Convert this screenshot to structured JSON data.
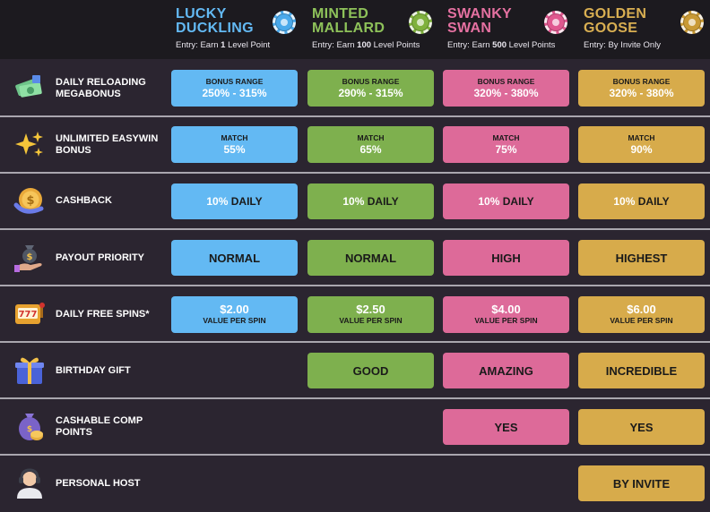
{
  "tiers": [
    {
      "name": "LUCKY DUCKLING",
      "entry_prefix": "Entry: Earn ",
      "entry_bold": "1",
      "entry_suffix": " Level Point",
      "color": "#63b9f3"
    },
    {
      "name": "MINTED MALLARD",
      "entry_prefix": "Entry: Earn ",
      "entry_bold": "100",
      "entry_suffix": " Level Points",
      "color": "#7eb04e"
    },
    {
      "name": "SWANKY SWAN",
      "entry_prefix": "Entry: Earn ",
      "entry_bold": "500",
      "entry_suffix": " Level Points",
      "color": "#dd6a99"
    },
    {
      "name": "GOLDEN GOOSE",
      "entry_prefix": "Entry: By Invite Only",
      "entry_bold": "",
      "entry_suffix": "",
      "color": "#d7ab4b"
    }
  ],
  "rows": {
    "megabonus": {
      "label": "DAILY RELOADING MEGABONUS",
      "icon": "money-stack-icon",
      "caption": "BONUS RANGE",
      "values": [
        "250% - 315%",
        "290% - 315%",
        "320% - 380%",
        "320% - 380%"
      ]
    },
    "easywin": {
      "label": "UNLIMITED EASYWIN BONUS",
      "icon": "sparkles-icon",
      "caption": "MATCH",
      "values": [
        "55%",
        "65%",
        "75%",
        "90%"
      ]
    },
    "cashback": {
      "label": "CASHBACK",
      "icon": "cashback-coin-icon",
      "percent": "10%",
      "word": "DAILY",
      "values": [
        "10%",
        "10%",
        "10%",
        "10%"
      ]
    },
    "payout": {
      "label": "PAYOUT PRIORITY",
      "icon": "money-bag-hand-icon",
      "values": [
        "NORMAL",
        "NORMAL",
        "HIGH",
        "HIGHEST"
      ]
    },
    "spins": {
      "label": "DAILY FREE SPINS*",
      "icon": "slot-machine-icon",
      "caption": "VALUE PER SPIN",
      "values": [
        "$2.00",
        "$2.50",
        "$4.00",
        "$6.00"
      ]
    },
    "birthday": {
      "label": "BIRTHDAY GIFT",
      "icon": "gift-box-icon",
      "values": [
        "GOOD",
        "AMAZING",
        "INCREDIBLE"
      ]
    },
    "comp": {
      "label": "CASHABLE COMP POINTS",
      "icon": "coin-bag-icon",
      "values": [
        "YES",
        "YES"
      ]
    },
    "host": {
      "label": "PERSONAL HOST",
      "icon": "headset-person-icon",
      "values": [
        "BY INVITE"
      ]
    }
  }
}
